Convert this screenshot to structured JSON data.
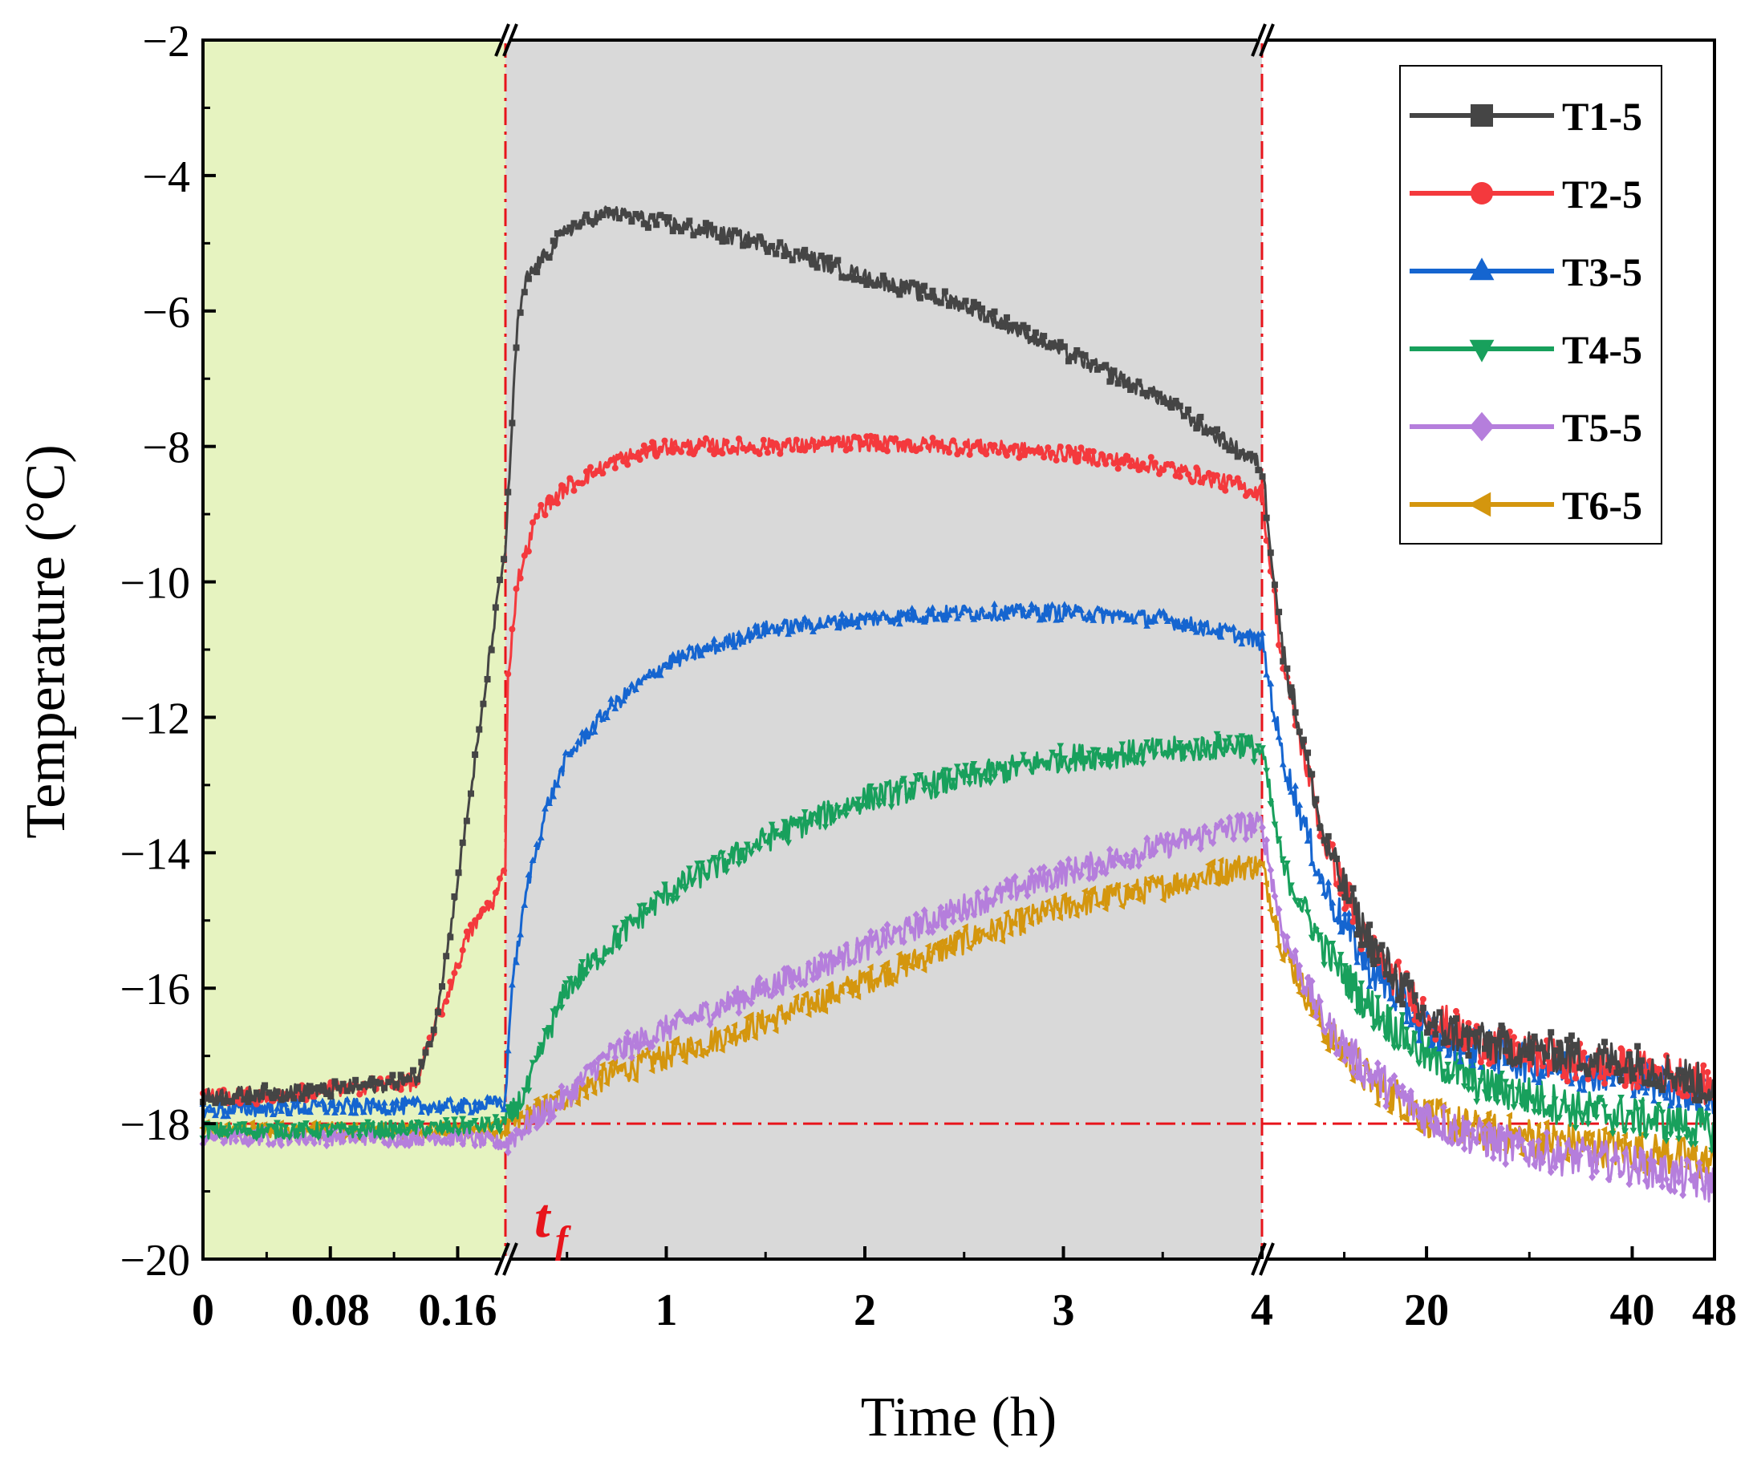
{
  "chart_data": {
    "type": "line",
    "title": "",
    "xlabel": "Time (h)",
    "ylabel": "Temperature (°C)",
    "ylim": [
      -20,
      -2
    ],
    "yticks": [
      "−2",
      "−4",
      "−6",
      "−8",
      "−10",
      "−12",
      "−14",
      "−16",
      "−18",
      "−20"
    ],
    "ytick_values": [
      -2,
      -4,
      -6,
      -8,
      -10,
      -12,
      -14,
      -16,
      -18,
      -20
    ],
    "x_axis_note": "broken axis with three segments",
    "segments": [
      {
        "range": [
          0,
          0.19
        ],
        "ticks": [
          0,
          0.08,
          0.16
        ],
        "tick_labels": [
          "0",
          "0.08",
          "0.16"
        ],
        "background": "#e6f3c0"
      },
      {
        "range": [
          0.19,
          4
        ],
        "ticks": [
          1,
          2,
          3
        ],
        "tick_labels": [
          "1",
          "2",
          "3"
        ],
        "background": "#d9d9d9"
      },
      {
        "range": [
          4,
          48
        ],
        "ticks": [
          4,
          20,
          40,
          48
        ],
        "tick_labels": [
          "4",
          "20",
          "40",
          "48"
        ],
        "background": "#ffffff"
      }
    ],
    "highlight_tick": {
      "label": "4",
      "color": "#e8141b"
    },
    "reference_line": {
      "y": -18,
      "style": "dash-dot",
      "color": "#e8141b"
    },
    "vertical_markers": [
      {
        "x": 0.19,
        "label": "t",
        "subscript": "f",
        "color": "#e8141b"
      },
      {
        "x": 4,
        "label": "",
        "color": "#e8141b"
      }
    ],
    "legend_position": "top-right",
    "series": [
      {
        "name": "T1-5",
        "color": "#454545",
        "marker": "square",
        "points": [
          [
            0,
            -17.6
          ],
          [
            0.04,
            -17.55
          ],
          [
            0.08,
            -17.5
          ],
          [
            0.12,
            -17.4
          ],
          [
            0.135,
            -17.3
          ],
          [
            0.145,
            -16.6
          ],
          [
            0.155,
            -15.2
          ],
          [
            0.165,
            -13.6
          ],
          [
            0.175,
            -12.0
          ],
          [
            0.183,
            -10.6
          ],
          [
            0.19,
            -9.5
          ],
          [
            0.25,
            -6.2
          ],
          [
            0.3,
            -5.5
          ],
          [
            0.5,
            -4.8
          ],
          [
            0.7,
            -4.55
          ],
          [
            1,
            -4.7
          ],
          [
            1.5,
            -5.0
          ],
          [
            2,
            -5.5
          ],
          [
            2.5,
            -5.9
          ],
          [
            3,
            -6.6
          ],
          [
            3.5,
            -7.3
          ],
          [
            3.9,
            -8.1
          ],
          [
            4,
            -8.3
          ],
          [
            6,
            -11.0
          ],
          [
            10,
            -13.8
          ],
          [
            14,
            -15.2
          ],
          [
            20,
            -16.5
          ],
          [
            25,
            -16.8
          ],
          [
            30,
            -16.9
          ],
          [
            35,
            -17.0
          ],
          [
            40,
            -17.1
          ],
          [
            45,
            -17.3
          ],
          [
            48,
            -17.5
          ]
        ]
      },
      {
        "name": "T2-5",
        "color": "#f4393d",
        "marker": "circle",
        "points": [
          [
            0,
            -17.6
          ],
          [
            0.04,
            -17.6
          ],
          [
            0.08,
            -17.5
          ],
          [
            0.12,
            -17.4
          ],
          [
            0.135,
            -17.4
          ],
          [
            0.145,
            -16.6
          ],
          [
            0.155,
            -16.0
          ],
          [
            0.165,
            -15.3
          ],
          [
            0.175,
            -14.9
          ],
          [
            0.183,
            -14.7
          ],
          [
            0.19,
            -14.2
          ],
          [
            0.2,
            -11.5
          ],
          [
            0.25,
            -10.0
          ],
          [
            0.35,
            -9.0
          ],
          [
            0.5,
            -8.6
          ],
          [
            0.75,
            -8.2
          ],
          [
            1,
            -8.0
          ],
          [
            1.5,
            -8.0
          ],
          [
            2,
            -7.95
          ],
          [
            2.5,
            -8.0
          ],
          [
            3,
            -8.1
          ],
          [
            3.5,
            -8.3
          ],
          [
            3.9,
            -8.6
          ],
          [
            4,
            -8.7
          ],
          [
            6,
            -11.2
          ],
          [
            10,
            -13.8
          ],
          [
            14,
            -15.3
          ],
          [
            20,
            -16.4
          ],
          [
            25,
            -16.8
          ],
          [
            30,
            -17.0
          ],
          [
            35,
            -17.1
          ],
          [
            40,
            -17.2
          ],
          [
            45,
            -17.3
          ],
          [
            48,
            -17.5
          ]
        ]
      },
      {
        "name": "T3-5",
        "color": "#1565d0",
        "marker": "triangle-up",
        "points": [
          [
            0,
            -17.8
          ],
          [
            0.08,
            -17.75
          ],
          [
            0.16,
            -17.75
          ],
          [
            0.19,
            -17.7
          ],
          [
            0.22,
            -16.0
          ],
          [
            0.3,
            -14.5
          ],
          [
            0.4,
            -13.3
          ],
          [
            0.5,
            -12.6
          ],
          [
            0.7,
            -11.9
          ],
          [
            1,
            -11.2
          ],
          [
            1.5,
            -10.7
          ],
          [
            2,
            -10.55
          ],
          [
            2.5,
            -10.45
          ],
          [
            3,
            -10.45
          ],
          [
            3.5,
            -10.55
          ],
          [
            3.9,
            -10.8
          ],
          [
            4,
            -10.9
          ],
          [
            6,
            -12.6
          ],
          [
            10,
            -14.5
          ],
          [
            14,
            -15.6
          ],
          [
            20,
            -16.6
          ],
          [
            25,
            -16.9
          ],
          [
            30,
            -17.1
          ],
          [
            35,
            -17.2
          ],
          [
            40,
            -17.3
          ],
          [
            45,
            -17.5
          ],
          [
            48,
            -17.6
          ]
        ]
      },
      {
        "name": "T4-5",
        "color": "#18a05c",
        "marker": "triangle-down",
        "points": [
          [
            0,
            -18.1
          ],
          [
            0.08,
            -18.1
          ],
          [
            0.16,
            -18.05
          ],
          [
            0.19,
            -18.0
          ],
          [
            0.3,
            -17.5
          ],
          [
            0.4,
            -16.7
          ],
          [
            0.5,
            -16.0
          ],
          [
            0.7,
            -15.4
          ],
          [
            1,
            -14.6
          ],
          [
            1.5,
            -13.8
          ],
          [
            2,
            -13.2
          ],
          [
            2.5,
            -12.9
          ],
          [
            3,
            -12.6
          ],
          [
            3.5,
            -12.5
          ],
          [
            3.9,
            -12.4
          ],
          [
            4,
            -12.5
          ],
          [
            6,
            -14.2
          ],
          [
            10,
            -15.4
          ],
          [
            14,
            -16.2
          ],
          [
            20,
            -17.0
          ],
          [
            25,
            -17.4
          ],
          [
            30,
            -17.6
          ],
          [
            35,
            -17.8
          ],
          [
            40,
            -17.9
          ],
          [
            45,
            -18.0
          ],
          [
            48,
            -18.1
          ]
        ]
      },
      {
        "name": "T5-5",
        "color": "#b57edc",
        "marker": "diamond",
        "points": [
          [
            0,
            -18.2
          ],
          [
            0.08,
            -18.2
          ],
          [
            0.16,
            -18.2
          ],
          [
            0.19,
            -18.3
          ],
          [
            0.3,
            -18.0
          ],
          [
            0.5,
            -17.6
          ],
          [
            0.7,
            -17.0
          ],
          [
            1,
            -16.6
          ],
          [
            1.5,
            -16.0
          ],
          [
            2,
            -15.4
          ],
          [
            2.5,
            -14.8
          ],
          [
            3,
            -14.3
          ],
          [
            3.5,
            -13.9
          ],
          [
            3.9,
            -13.6
          ],
          [
            4,
            -13.6
          ],
          [
            6,
            -15.2
          ],
          [
            10,
            -16.5
          ],
          [
            14,
            -17.2
          ],
          [
            20,
            -17.9
          ],
          [
            25,
            -18.2
          ],
          [
            30,
            -18.4
          ],
          [
            35,
            -18.5
          ],
          [
            40,
            -18.6
          ],
          [
            45,
            -18.8
          ],
          [
            48,
            -18.9
          ]
        ]
      },
      {
        "name": "T6-5",
        "color": "#d4960e",
        "marker": "triangle-left",
        "points": [
          [
            0,
            -18.1
          ],
          [
            0.08,
            -18.1
          ],
          [
            0.16,
            -18.1
          ],
          [
            0.19,
            -18.1
          ],
          [
            0.3,
            -17.9
          ],
          [
            0.5,
            -17.6
          ],
          [
            0.7,
            -17.3
          ],
          [
            1,
            -17.0
          ],
          [
            1.5,
            -16.5
          ],
          [
            2,
            -15.9
          ],
          [
            2.5,
            -15.3
          ],
          [
            3,
            -14.8
          ],
          [
            3.5,
            -14.5
          ],
          [
            3.9,
            -14.2
          ],
          [
            4,
            -14.2
          ],
          [
            6,
            -15.4
          ],
          [
            10,
            -16.6
          ],
          [
            14,
            -17.3
          ],
          [
            20,
            -17.9
          ],
          [
            25,
            -18.1
          ],
          [
            30,
            -18.2
          ],
          [
            35,
            -18.3
          ],
          [
            40,
            -18.4
          ],
          [
            45,
            -18.5
          ],
          [
            48,
            -18.6
          ]
        ]
      }
    ]
  }
}
